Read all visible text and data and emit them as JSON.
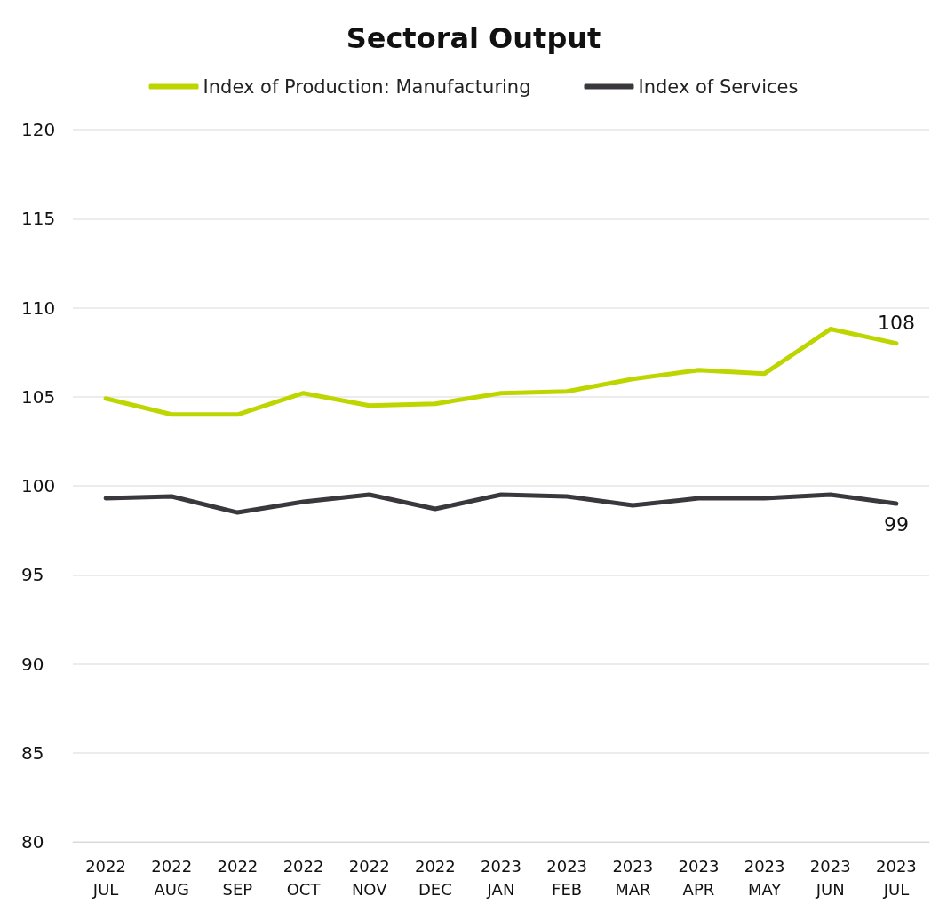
{
  "chart_data": {
    "type": "line",
    "title": "Sectoral Output",
    "categories": [
      "2022\nJUL",
      "2022\nAUG",
      "2022\nSEP",
      "2022\nOCT",
      "2022\nNOV",
      "2022\nDEC",
      "2023\nJAN",
      "2023\nFEB",
      "2023\nMAR",
      "2023\nAPR",
      "2023\nMAY",
      "2023\nJUN",
      "2023\nJUL"
    ],
    "series": [
      {
        "name": "Index of Production: Manufacturing",
        "color": "#bed600",
        "values": [
          104.9,
          104.0,
          104.0,
          105.2,
          104.5,
          104.6,
          105.2,
          105.3,
          106.0,
          106.5,
          106.3,
          108.8,
          108.0
        ],
        "value_labels": [
          null,
          null,
          null,
          null,
          null,
          null,
          null,
          null,
          null,
          null,
          null,
          null,
          "108"
        ]
      },
      {
        "name": "Index of Services",
        "color": "#3a383c",
        "values": [
          99.3,
          99.4,
          98.5,
          99.1,
          99.5,
          98.7,
          99.5,
          99.4,
          98.9,
          99.3,
          99.3,
          99.5,
          99.0
        ],
        "value_labels": [
          null,
          null,
          null,
          null,
          null,
          null,
          null,
          null,
          null,
          null,
          null,
          null,
          "99"
        ]
      }
    ],
    "ylim": [
      80,
      120
    ],
    "yticks": [
      80,
      85,
      90,
      95,
      100,
      105,
      110,
      115,
      120
    ],
    "grid": "y",
    "legend": "top",
    "marker": "none",
    "line_style": "solid"
  }
}
